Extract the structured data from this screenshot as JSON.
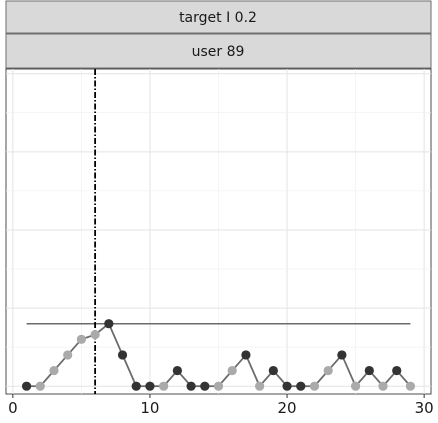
{
  "chart_data": {
    "type": "line",
    "facet_labels": [
      "target I 0.2",
      "user 89"
    ],
    "x": [
      1,
      2,
      3,
      4,
      5,
      6,
      7,
      8,
      9,
      10,
      11,
      12,
      13,
      14,
      15,
      16,
      17,
      18,
      19,
      20,
      21,
      22,
      23,
      24,
      25,
      26,
      27,
      28,
      29
    ],
    "y": [
      0,
      0,
      1,
      2,
      3,
      3.3,
      4,
      2,
      0,
      0,
      0,
      1,
      0,
      0,
      0,
      1,
      2,
      0,
      1,
      0,
      0,
      0,
      1,
      2,
      0,
      1,
      0,
      1,
      0
    ],
    "point_colors": [
      "#333333",
      "#aaaaaa",
      "#aaaaaa",
      "#aaaaaa",
      "#aaaaaa",
      "#aaaaaa",
      "#333333",
      "#333333",
      "#333333",
      "#333333",
      "#aaaaaa",
      "#333333",
      "#333333",
      "#333333",
      "#aaaaaa",
      "#aaaaaa",
      "#333333",
      "#aaaaaa",
      "#333333",
      "#333333",
      "#333333",
      "#aaaaaa",
      "#aaaaaa",
      "#333333",
      "#aaaaaa",
      "#333333",
      "#aaaaaa",
      "#333333",
      "#aaaaaa"
    ],
    "threshold_y": 4,
    "threshold_x_range": [
      1,
      29
    ],
    "vline_x": 6,
    "xlim": [
      -0.5,
      30.5
    ],
    "ylim": [
      -0.5,
      20.3
    ],
    "xticks": [
      0,
      10,
      20,
      30
    ],
    "grid": true,
    "xlabel": "",
    "ylabel": ""
  }
}
